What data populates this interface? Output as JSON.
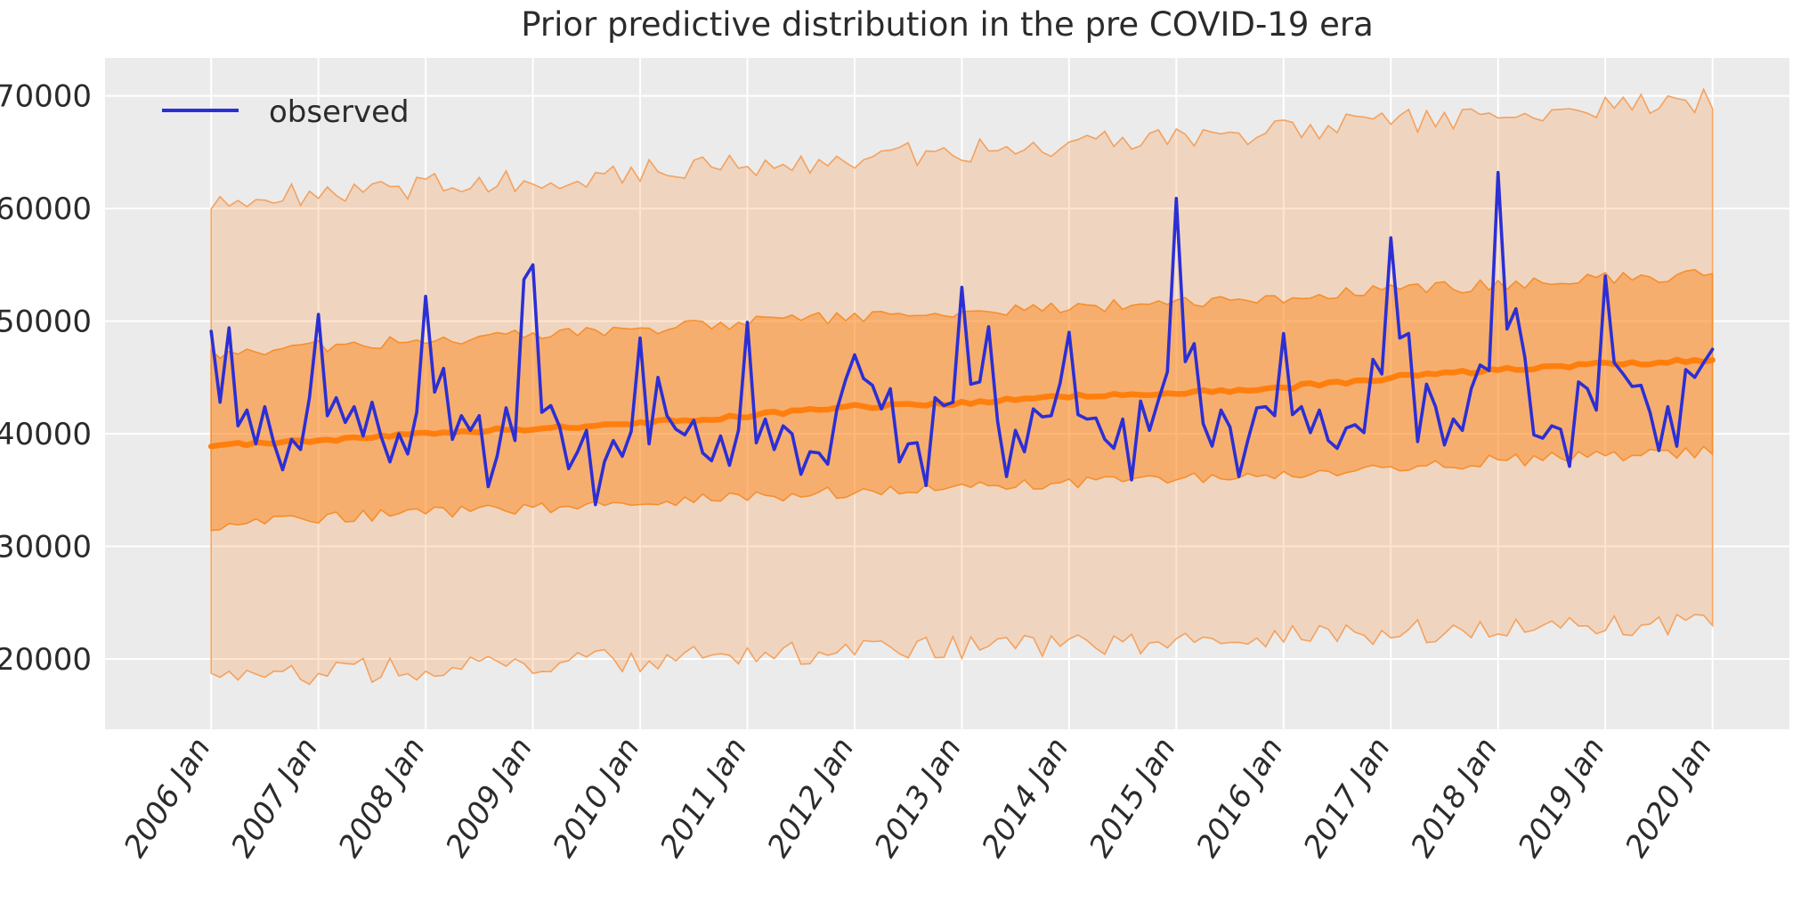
{
  "title": "Prior predictive distribution in the pre COVID-19 era",
  "legend": {
    "observed_label": "observed"
  },
  "colors": {
    "figure_bg": "#ffffff",
    "axes_bg": "#ebebeb",
    "grid": "#ffffff",
    "text": "#2b2b2b",
    "observed": "#2c2fd4",
    "median": "#ff7f0e",
    "band_inner_fill": "rgba(255,127,14,0.45)",
    "band_inner_edge": "rgba(245,140,40,0.95)",
    "band_outer_fill": "rgba(255,127,14,0.20)",
    "band_outer_edge": "rgba(244,150,75,0.85)"
  },
  "chart_data": {
    "type": "line",
    "title": "Prior predictive distribution in the pre COVID-19 era",
    "xlabel": "",
    "ylabel": "",
    "legend_entries": [
      "observed"
    ],
    "legend_position": "upper left",
    "grid": true,
    "xlim": [
      2005.01,
      2020.72
    ],
    "ylim": [
      13750,
      73350
    ],
    "y_ticks": [
      20000,
      30000,
      40000,
      50000,
      60000,
      70000
    ],
    "x_tick_years": [
      2006,
      2007,
      2008,
      2009,
      2010,
      2011,
      2012,
      2013,
      2014,
      2015,
      2016,
      2017,
      2018,
      2019,
      2020
    ],
    "x_tick_labels": [
      "2006 Jan",
      "2007 Jan",
      "2008 Jan",
      "2009 Jan",
      "2010 Jan",
      "2011 Jan",
      "2012 Jan",
      "2013 Jan",
      "2014 Jan",
      "2015 Jan",
      "2016 Jan",
      "2017 Jan",
      "2018 Jan",
      "2019 Jan",
      "2020 Jan"
    ],
    "observed_start": "2006-01",
    "observed_monthly_by_year": {
      "2006": [
        49100,
        42800,
        49400,
        40700,
        42100,
        39100,
        42400,
        39200,
        36800,
        39500,
        38600,
        43200
      ],
      "2007": [
        50600,
        41600,
        43200,
        41000,
        42400,
        39800,
        42800,
        39800,
        37500,
        40000,
        38200,
        41900
      ],
      "2008": [
        52200,
        43700,
        45800,
        39500,
        41600,
        40300,
        41600,
        35300,
        38000,
        42300,
        39400,
        53700
      ],
      "2009": [
        55000,
        41900,
        42500,
        40600,
        36900,
        38400,
        40300,
        33700,
        37500,
        39400,
        38000,
        40200
      ],
      "2010": [
        48500,
        39100,
        45000,
        41600,
        40400,
        39900,
        41200,
        38300,
        37600,
        39800,
        37200,
        40300
      ],
      "2011": [
        49900,
        39200,
        41300,
        38600,
        40700,
        40000,
        36400,
        38400,
        38300,
        37300,
        42100,
        44800
      ],
      "2012": [
        47000,
        44900,
        44300,
        42200,
        44000,
        37500,
        39100,
        39200,
        35400,
        43200,
        42500,
        42800
      ],
      "2013": [
        53000,
        44400,
        44600,
        49500,
        41100,
        36200,
        40300,
        38400,
        42200,
        41500,
        41600,
        44500
      ],
      "2014": [
        49000,
        41700,
        41300,
        41400,
        39500,
        38700,
        41300,
        35900,
        42900,
        40300,
        43000,
        45500
      ],
      "2015": [
        60900,
        46400,
        48000,
        40900,
        38900,
        42100,
        40600,
        36200,
        39400,
        42300,
        42400,
        41600
      ],
      "2016": [
        48900,
        41700,
        42400,
        40100,
        42100,
        39400,
        38700,
        40500,
        40800,
        40100,
        46600,
        45300
      ],
      "2017": [
        57400,
        48500,
        48900,
        39300,
        44400,
        42400,
        39000,
        41300,
        40300,
        44000,
        46100,
        45600
      ],
      "2018": [
        63200,
        49300,
        51100,
        46800,
        39900,
        39600,
        40700,
        40400,
        37100,
        44600,
        44000,
        42100
      ],
      "2019": [
        54000,
        46300,
        45300,
        44200,
        44300,
        41900,
        38500,
        42400,
        38900,
        45700,
        45000,
        46300
      ],
      "2020": [
        47500
      ]
    },
    "median_trend_anchors": [
      [
        2006,
        38900
      ],
      [
        2007,
        39400
      ],
      [
        2008,
        40000
      ],
      [
        2009,
        40500
      ],
      [
        2010,
        40900
      ],
      [
        2011,
        41600
      ],
      [
        2012,
        42400
      ],
      [
        2013,
        42700
      ],
      [
        2014,
        43300
      ],
      [
        2015,
        43600
      ],
      [
        2016,
        44100
      ],
      [
        2017,
        45000
      ],
      [
        2018,
        45700
      ],
      [
        2019,
        46200
      ],
      [
        2020,
        46500
      ],
      [
        2020.09,
        46700
      ]
    ],
    "band_inner_upper_anchors": [
      [
        2006,
        47200
      ],
      [
        2008,
        48300
      ],
      [
        2010,
        49300
      ],
      [
        2012,
        50400
      ],
      [
        2014,
        51200
      ],
      [
        2016,
        52100
      ],
      [
        2017,
        52700
      ],
      [
        2018,
        53200
      ],
      [
        2019,
        53800
      ],
      [
        2020.09,
        54200
      ]
    ],
    "band_inner_lower_anchors": [
      [
        2006,
        31900
      ],
      [
        2008,
        33000
      ],
      [
        2010,
        33900
      ],
      [
        2012,
        34900
      ],
      [
        2014,
        35700
      ],
      [
        2016,
        36500
      ],
      [
        2018,
        37600
      ],
      [
        2019,
        38000
      ],
      [
        2020.09,
        38400
      ]
    ],
    "band_outer_upper_anchors": [
      [
        2006,
        60600
      ],
      [
        2008,
        62000
      ],
      [
        2010,
        63300
      ],
      [
        2012,
        64500
      ],
      [
        2014,
        65700
      ],
      [
        2016,
        66900
      ],
      [
        2018,
        68300
      ],
      [
        2019,
        69000
      ],
      [
        2020.09,
        69700
      ]
    ],
    "band_outer_lower_anchors": [
      [
        2006,
        18400
      ],
      [
        2008,
        19200
      ],
      [
        2010,
        19900
      ],
      [
        2012,
        20700
      ],
      [
        2014,
        21300
      ],
      [
        2016,
        22000
      ],
      [
        2018,
        22800
      ],
      [
        2020.09,
        23300
      ]
    ],
    "band_noise_amplitude": {
      "outer": 1100,
      "inner": 550,
      "median": 190
    }
  }
}
